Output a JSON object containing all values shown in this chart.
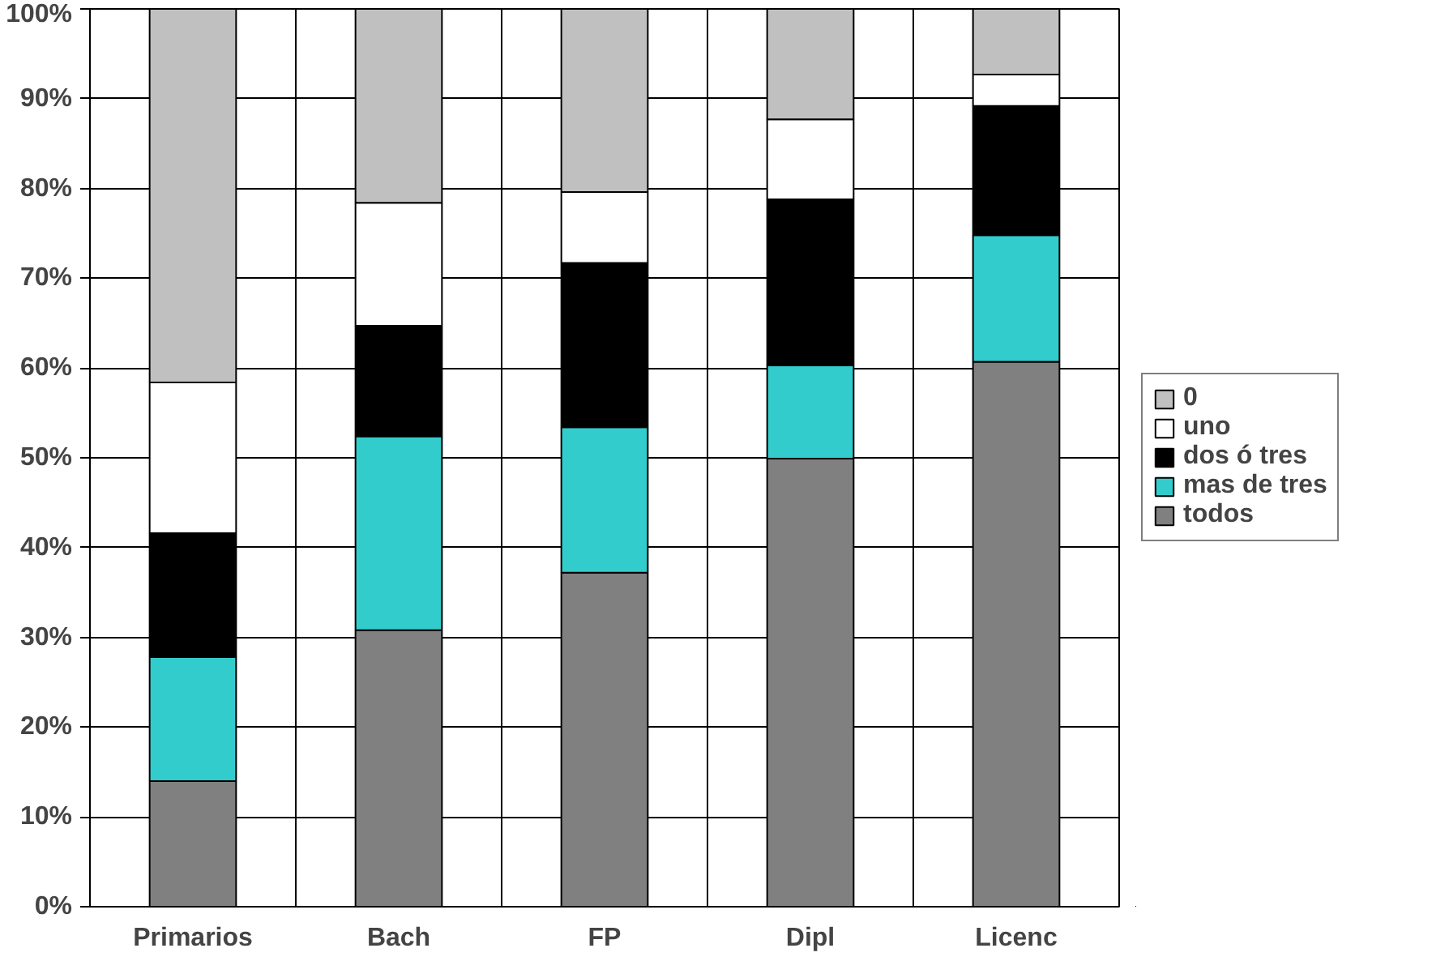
{
  "chart_data": {
    "type": "bar",
    "stacked": true,
    "categories": [
      "Primarios",
      "Bach",
      "FP",
      "Dipl",
      "Licenc"
    ],
    "series": [
      {
        "name": "todos",
        "color": "#808080",
        "values": [
          14,
          30.8,
          37.2,
          49.9,
          60.7
        ]
      },
      {
        "name": "mas de tres",
        "color": "#33cccc",
        "values": [
          13.8,
          21.6,
          16.2,
          10.4,
          14.1
        ]
      },
      {
        "name": "dos ó tres",
        "color": "#000000",
        "values": [
          13.8,
          12.3,
          18.3,
          18.5,
          14.4
        ]
      },
      {
        "name": "uno",
        "color": "#ffffff",
        "values": [
          16.8,
          13.7,
          7.9,
          8.9,
          3.5
        ]
      },
      {
        "name": "0",
        "color": "#c0c0c0",
        "values": [
          41.6,
          21.6,
          20.4,
          12.3,
          7.3
        ]
      }
    ],
    "ylim": [
      0,
      100
    ],
    "yticks": [
      {
        "value": 0,
        "label": "0%"
      },
      {
        "value": 10,
        "label": "10%"
      },
      {
        "value": 20,
        "label": "20%"
      },
      {
        "value": 30,
        "label": "30%"
      },
      {
        "value": 40,
        "label": "40%"
      },
      {
        "value": 50,
        "label": "50%"
      },
      {
        "value": 60,
        "label": "60%"
      },
      {
        "value": 70,
        "label": "70%"
      },
      {
        "value": 80,
        "label": "80%"
      },
      {
        "value": 90,
        "label": "90%"
      },
      {
        "value": 100,
        "label": "100%"
      }
    ],
    "grid": true,
    "legend": "right"
  }
}
